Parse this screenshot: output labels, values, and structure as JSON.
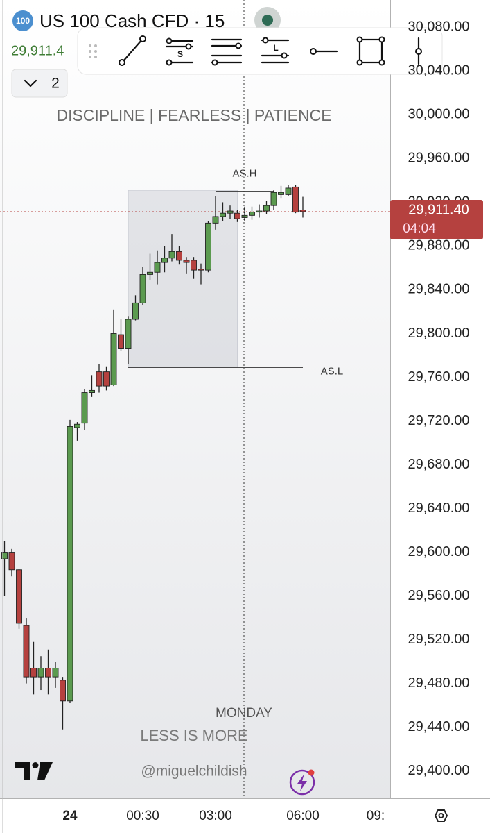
{
  "chart_data": {
    "type": "candlestick",
    "symbol_badge": "100",
    "title": "US 100 Cash CFD · 15",
    "price_text": "29,911.4",
    "panel_count": "2",
    "watermarks": [
      "DISCIPLINE | FEARLESS | PATIENCE",
      "MONDAY",
      "LESS IS MORE",
      "@miguelchildish"
    ],
    "categories": [
      null,
      null,
      null,
      null,
      null,
      null,
      null,
      null,
      null,
      "24",
      null,
      null,
      null,
      null,
      null,
      null,
      null,
      null,
      null,
      "00:30",
      null,
      null,
      null,
      null,
      null,
      null,
      null,
      null,
      null,
      "03:00",
      null,
      null,
      null,
      null,
      null,
      null,
      null,
      null,
      null,
      null,
      null,
      "06:00",
      null,
      null,
      null,
      null,
      null,
      null,
      null,
      null,
      null,
      "09:",
      null
    ],
    "open": [
      29594,
      29600,
      29584,
      29533,
      29494,
      29486,
      29494,
      29486,
      29483,
      29464,
      29714,
      29718,
      29746,
      29765,
      29765,
      29753,
      29799,
      29786,
      29813,
      29828,
      29854,
      29856,
      29865,
      29869,
      29875,
      29867,
      29867,
      29859,
      29858,
      29901,
      29907,
      29910,
      29910,
      29906,
      29908,
      29911,
      29912,
      29917,
      29927,
      29927,
      29934,
      29913,
      null,
      null,
      null,
      null,
      null,
      null,
      null,
      null,
      null,
      null,
      null
    ],
    "high": [
      29610,
      29603,
      29585,
      29540,
      29518,
      29505,
      29511,
      29500,
      29486,
      29721,
      29719,
      29749,
      29762,
      29772,
      29770,
      29822,
      29813,
      29816,
      29835,
      29861,
      29873,
      29876,
      29880,
      29891,
      29880,
      29870,
      29870,
      29864,
      29903,
      29926,
      29920,
      29917,
      29913,
      29916,
      29916,
      29918,
      29921,
      29931,
      29935,
      29936,
      29936,
      29925,
      null,
      null,
      null,
      null,
      null,
      null,
      null,
      null,
      null,
      null,
      null
    ],
    "low": [
      29560,
      29578,
      29530,
      29480,
      29470,
      29474,
      29470,
      29476,
      29438,
      29462,
      29702,
      29712,
      29742,
      29746,
      29748,
      29752,
      29784,
      29772,
      29812,
      29826,
      29849,
      29845,
      29856,
      29866,
      29863,
      29855,
      29850,
      29845,
      29856,
      29895,
      29903,
      29905,
      29902,
      29903,
      29904,
      29906,
      29909,
      29913,
      29924,
      29926,
      29910,
      29906,
      null,
      null,
      null,
      null,
      null,
      null,
      null,
      null,
      null,
      null,
      null
    ],
    "close": [
      29600,
      29584,
      29535,
      29486,
      29486,
      29494,
      29486,
      29494,
      29464,
      29715,
      29717,
      29746,
      29748,
      29752,
      29752,
      29800,
      29786,
      29813,
      29828,
      29854,
      29856,
      29865,
      29869,
      29875,
      29867,
      29865,
      29858,
      29858,
      29901,
      29907,
      29910,
      29912,
      29905,
      29908,
      29911,
      29912,
      29917,
      29929,
      29929,
      29933,
      29911,
      29911.4,
      null,
      null,
      null,
      null,
      null,
      null,
      null,
      null,
      null,
      null,
      null
    ],
    "up_color": "#5b9a4f",
    "down_color": "#b5413f",
    "ylim": [
      29375,
      30105
    ],
    "yticks": [
      {
        "value": 30080,
        "label": "30,080.00"
      },
      {
        "value": 30040,
        "label": "30,040.00"
      },
      {
        "value": 30000,
        "label": "30,000.00"
      },
      {
        "value": 29960,
        "label": "29,960.00"
      },
      {
        "value": 29920,
        "label": "29,920.00"
      },
      {
        "value": 29880,
        "label": "29,880.00"
      },
      {
        "value": 29840,
        "label": "29,840.00"
      },
      {
        "value": 29800,
        "label": "29,800.00"
      },
      {
        "value": 29760,
        "label": "29,760.00"
      },
      {
        "value": 29720,
        "label": "29,720.00"
      },
      {
        "value": 29680,
        "label": "29,680.00"
      },
      {
        "value": 29640,
        "label": "29,640.00"
      },
      {
        "value": 29600,
        "label": "29,600.00"
      },
      {
        "value": 29560,
        "label": "29,560.00"
      },
      {
        "value": 29520,
        "label": "29,520.00"
      },
      {
        "value": 29480,
        "label": "29,480.00"
      },
      {
        "value": 29440,
        "label": "29,440.00"
      },
      {
        "value": 29400,
        "label": "29,400.00"
      }
    ],
    "grid": false,
    "current_price": {
      "value": 29911.4,
      "label": "29,911.40",
      "countdown": "04:04"
    },
    "box": {
      "from": 17,
      "to": 32,
      "top": 29931,
      "bottom": 29769
    },
    "levels": [
      {
        "label": "AS.H",
        "value": 29930,
        "from": 29,
        "to": 37
      },
      {
        "label": "AS.L",
        "value": 29769,
        "from": 17,
        "to": 41
      }
    ]
  },
  "toolbar": {
    "labels": [
      "S",
      "L"
    ]
  }
}
